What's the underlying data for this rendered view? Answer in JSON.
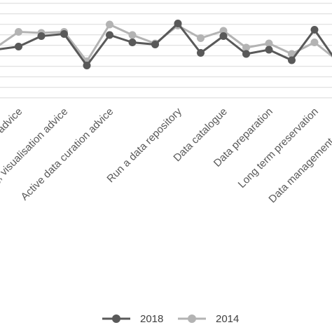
{
  "chart_data": {
    "type": "line",
    "categories": [
      "",
      "Data citation advice",
      "",
      "Data mining, visualisation advice",
      "",
      "Active data curation advice",
      "",
      "",
      "Run a data repository",
      "",
      "Data catalogue",
      "",
      "Data preparation",
      "",
      "Long term preservation",
      "",
      "Data management planning"
    ],
    "series": [
      {
        "name": "2018",
        "color": "#595959",
        "values": [
          56,
          59,
          69,
          71,
          41,
          70,
          63,
          61,
          81,
          53,
          69,
          52,
          56,
          46,
          75,
          44,
          44
        ]
      },
      {
        "name": "2014",
        "color": "#b3b3b3",
        "values": [
          58,
          73,
          72,
          73,
          45,
          80,
          70,
          62,
          79,
          67,
          74,
          58,
          62,
          52,
          63,
          46,
          46
        ]
      }
    ],
    "grid": true,
    "legend_position": "bottom"
  }
}
